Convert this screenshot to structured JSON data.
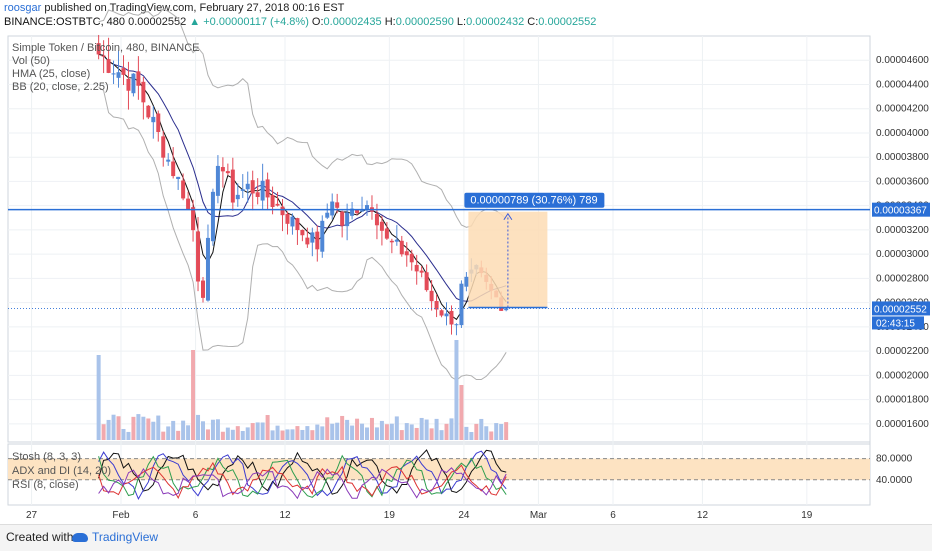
{
  "header": {
    "author": "roosgar",
    "published": "published on TradingView.com, February 27, 2018 00:16 EST",
    "symbol": "BINANCE:OSTBTC, 480",
    "last": "0.00002552",
    "change": "+0.00000117 (+4.8%)",
    "o_label": "O:",
    "o": "0.00002435",
    "h_label": "H:",
    "h": "0.00002590",
    "l_label": "L:",
    "l": "0.00002432",
    "c_label": "C:",
    "c": "0.00002552"
  },
  "indicators": {
    "title": "Simple Token / Bitcoin, 480, BINANCE",
    "vol": "Vol (50)",
    "hma": "HMA (25, close)",
    "bb": "BB (20, close, 2.25)",
    "stoch": "Stosh (8, 3, 3)",
    "adx": "ADX and DI (14, 20)",
    "rsi": "RSI (8, close)"
  },
  "measure": {
    "label": "0.00000789 (30.76%) 789",
    "from": 2.56e-05,
    "to": 3.35e-05
  },
  "price_tags": {
    "line_price": "0.00003367",
    "current_price": "0.00002552",
    "countdown": "02:43:15"
  },
  "chart_data": {
    "type": "candlestick",
    "title": "Simple Token / Bitcoin, 480, BINANCE",
    "ylim": [
      1.45e-05,
      4.8e-05
    ],
    "y_ticks": [
      "0.00004600",
      "0.00004400",
      "0.00004200",
      "0.00004000",
      "0.00003800",
      "0.00003600",
      "0.00003400",
      "0.00003200",
      "0.00003000",
      "0.00002800",
      "0.00002600",
      "0.00002400",
      "0.00002200",
      "0.00002000",
      "0.00001800",
      "0.00001600"
    ],
    "x_ticks": [
      "27",
      "Feb",
      "6",
      "12",
      "19",
      "24",
      "Mar",
      "6",
      "12",
      "19"
    ],
    "horizontal_line": 3.367e-05,
    "current_price": 2.552e-05,
    "candles_per_day": 3,
    "close_path": [
      [
        0,
        4.65e-05
      ],
      [
        3,
        4.55e-05
      ],
      [
        8,
        4.37e-05
      ],
      [
        14,
        3.78e-05
      ],
      [
        17,
        3.52e-05
      ],
      [
        19,
        3.2e-05
      ],
      [
        20,
        2.82e-05
      ],
      [
        21,
        2.7e-05
      ],
      [
        24,
        3.8e-05
      ],
      [
        27,
        3.48e-05
      ],
      [
        30,
        3.55e-05
      ],
      [
        33,
        3.52e-05
      ],
      [
        37,
        3.35e-05
      ],
      [
        41,
        3.18e-05
      ],
      [
        44,
        3.08e-05
      ],
      [
        47,
        3.48e-05
      ],
      [
        49,
        3.25e-05
      ],
      [
        52,
        3.4e-05
      ],
      [
        55,
        3.42e-05
      ],
      [
        58,
        3.1e-05
      ],
      [
        62,
        3e-05
      ],
      [
        65,
        2.8e-05
      ],
      [
        67,
        2.62e-05
      ],
      [
        70,
        2.48e-05
      ],
      [
        72,
        2.45e-05
      ],
      [
        73,
        2.72e-05
      ],
      [
        76,
        2.85e-05
      ],
      [
        79,
        2.68e-05
      ],
      [
        82,
        2.55e-05
      ]
    ],
    "volume_spikes": [
      [
        0,
        0.85
      ],
      [
        19,
        0.9
      ],
      [
        72,
        1.0
      ],
      [
        73,
        0.55
      ]
    ],
    "oscillator_band": [
      80,
      40
    ],
    "oscillator_ticks": [
      "80.0000",
      "40.0000"
    ],
    "colors": {
      "up": "#4f87d6",
      "down": "#e34b58",
      "hma": "#2b2e8e",
      "bb": "#b0b0b0",
      "band": "#fde3c2",
      "line": "#2a6fd6"
    }
  },
  "footer": {
    "created": "Created with",
    "brand": "TradingView"
  }
}
